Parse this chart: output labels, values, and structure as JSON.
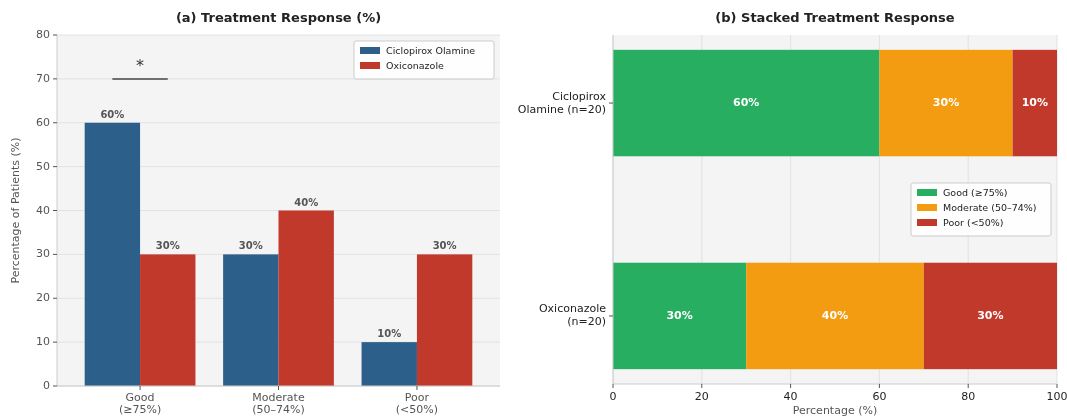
{
  "chart_data": [
    {
      "type": "bar",
      "title": "(a) Treatment Response (%)",
      "ylabel": "Percentage of Patients (%)",
      "categories": [
        "Good\n(≥75%)",
        "Moderate\n(50–74%)",
        "Poor\n(<50%)"
      ],
      "series": [
        {
          "name": "Ciclopirox Olamine",
          "color": "#2c5f8a",
          "values": [
            60,
            30,
            10
          ],
          "value_labels": [
            "60%",
            "30%",
            "10%"
          ]
        },
        {
          "name": "Oxiconazole",
          "color": "#c0392b",
          "values": [
            30,
            40,
            30
          ],
          "value_labels": [
            "30%",
            "40%",
            "30%"
          ]
        }
      ],
      "ylim": [
        0,
        80
      ],
      "yticks": [
        0,
        10,
        20,
        30,
        40,
        50,
        60,
        70,
        80
      ],
      "grid": "y",
      "legend": "top right",
      "annotations": [
        "*"
      ]
    },
    {
      "type": "bar",
      "title": "(b) Stacked Treatment Response",
      "xlabel": "Percentage (%)",
      "orientation": "horizontal",
      "stacked": true,
      "categories": [
        "Ciclopirox\nOlamine (n=20)",
        "Oxiconazole\n(n=20)"
      ],
      "series": [
        {
          "name": "Good (≥75%)",
          "color": "#27ae60",
          "values": [
            60,
            30
          ],
          "value_labels": [
            "60%",
            "30%"
          ]
        },
        {
          "name": "Moderate (50–74%)",
          "color": "#f39c12",
          "values": [
            30,
            40
          ],
          "value_labels": [
            "30%",
            "40%"
          ]
        },
        {
          "name": "Poor (<50%)",
          "color": "#c0392b",
          "values": [
            10,
            30
          ],
          "value_labels": [
            "10%",
            "30%"
          ]
        }
      ],
      "xlim": [
        0,
        100
      ],
      "xticks": [
        0,
        20,
        40,
        60,
        80,
        100
      ],
      "grid": "x",
      "legend": "right"
    }
  ]
}
